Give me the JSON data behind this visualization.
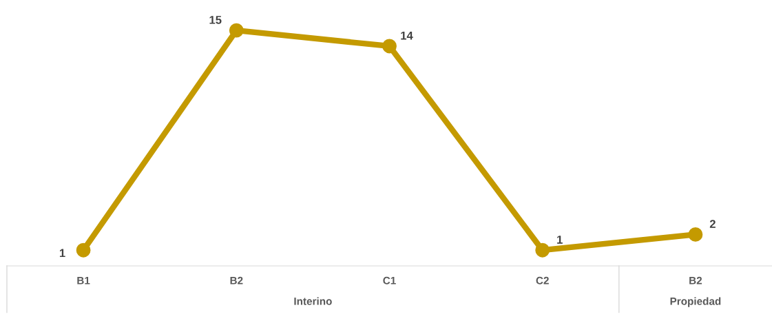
{
  "chart_data": {
    "type": "line",
    "categories": [
      "B1",
      "B2",
      "C1",
      "C2",
      "B2"
    ],
    "series": [
      {
        "color": "#c49a00",
        "values": [
          1,
          15,
          14,
          1,
          2
        ]
      }
    ],
    "annotations": [
      "Interino",
      "Propiedad"
    ],
    "data_labels": true,
    "marker": "circle"
  }
}
